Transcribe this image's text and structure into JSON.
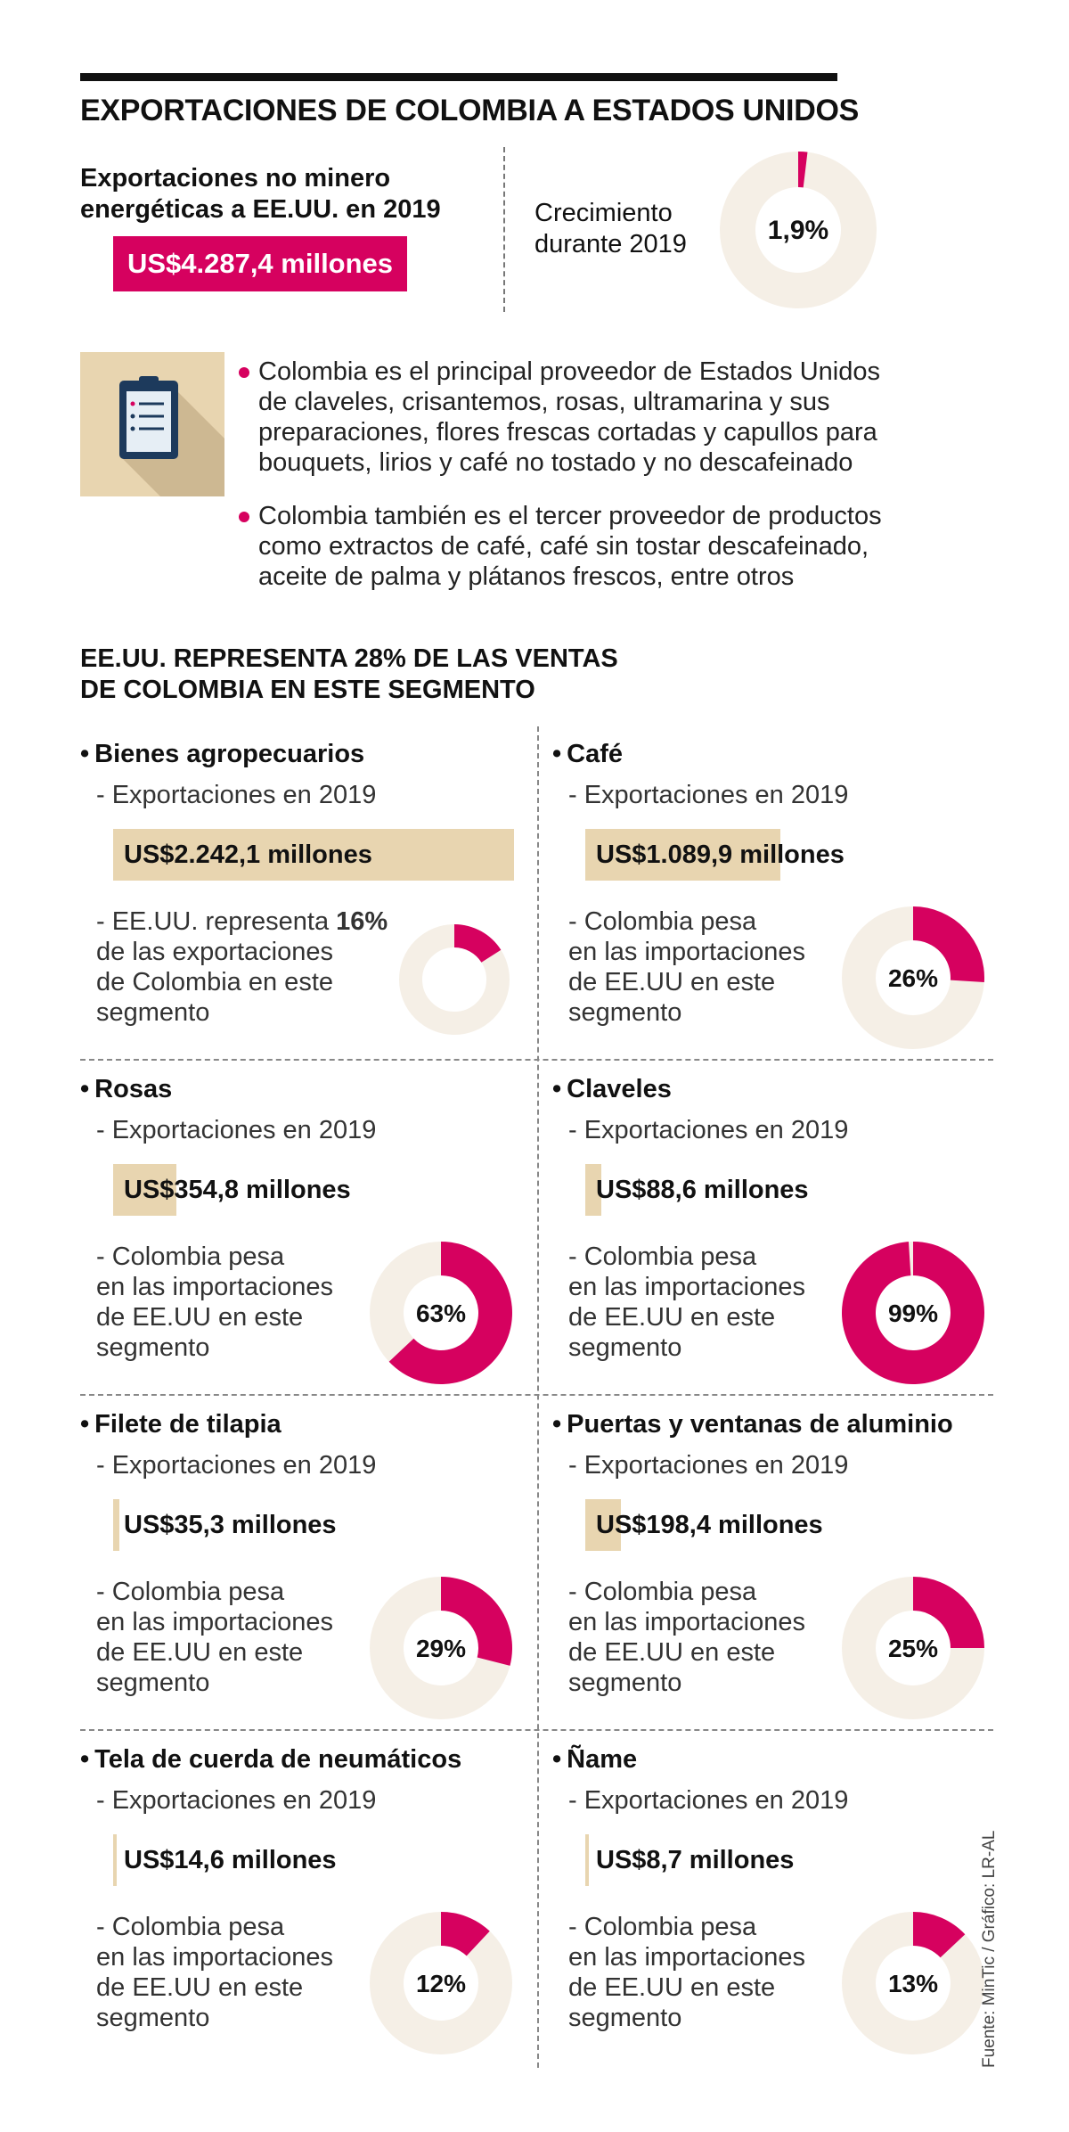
{
  "header": {
    "title": "EXPORTACIONES DE COLOMBIA A ESTADOS UNIDOS",
    "left_lines": [
      "Exportaciones no minero",
      "energéticas a EE.UU. en 2019"
    ],
    "highlight": "US$4.287,4 millones",
    "growth_lines": [
      "Crecimiento",
      "durante 2019"
    ],
    "growth_label": "1,9%",
    "growth_value": 1.9
  },
  "icon": "clipboard-icon",
  "bullets": [
    {
      "lines": [
        "Colombia es el principal proveedor de Estados Unidos",
        "de claveles, crisantemos, rosas, ultramarina y sus",
        "preparaciones, flores frescas cortadas y capullos para",
        "bouquets, lirios y café no tostado y no descafeinado"
      ]
    },
    {
      "lines": [
        "Colombia también es el tercer proveedor de productos",
        "como extractos de café, café sin tostar descafeinado,",
        "aceite de palma y plátanos frescos, entre otros"
      ]
    }
  ],
  "section_title_lines": [
    "EE.UU. REPRESENTA 28% DE LAS VENTAS",
    "DE COLOMBIA EN ESTE SEGMENTO"
  ],
  "colors": {
    "accent": "#d6015f",
    "bar": "#e8d5b0",
    "ring": "#f5efe6"
  },
  "chart_data": {
    "type": "bar",
    "unit": "millones US$",
    "bar_max": 2242.1,
    "categories": [
      "Bienes agropecuarios",
      "Café",
      "Rosas",
      "Claveles",
      "Filete de tilapia",
      "Puertas y ventanas de aluminio",
      "Tela de cuerda de neumáticos",
      "Ñame"
    ],
    "values": [
      2242.1,
      1089.9,
      354.8,
      88.6,
      35.3,
      198.4,
      14.6,
      8.7
    ],
    "share_pct": [
      16,
      26,
      63,
      99,
      29,
      25,
      12,
      13
    ]
  },
  "cells": [
    {
      "title": "Bienes agropecuarios",
      "sub": "- Exportaciones en 2019",
      "value_label": "US$2.242,1 millones",
      "desc_html": [
        "- EE.UU. representa <b>16%</b>",
        "de las exportaciones",
        "de Colombia en este",
        "segmento"
      ],
      "donut_label": "",
      "small_donut": true
    },
    {
      "title": "Café",
      "sub": "- Exportaciones en 2019",
      "value_label": "US$1.089,9 millones",
      "desc": [
        "- Colombia pesa",
        "en las importaciones",
        "de EE.UU en este",
        "segmento"
      ],
      "donut_label": "26%"
    },
    {
      "title": "Rosas",
      "sub": "- Exportaciones en 2019",
      "value_label": "US$354,8 millones",
      "desc": [
        "- Colombia pesa",
        "en las importaciones",
        "de EE.UU en este",
        "segmento"
      ],
      "donut_label": "63%"
    },
    {
      "title": "Claveles",
      "sub": "- Exportaciones en 2019",
      "value_label": "US$88,6 millones",
      "desc": [
        "- Colombia pesa",
        "en las importaciones",
        "de EE.UU en este",
        "segmento"
      ],
      "donut_label": "99%"
    },
    {
      "title": "Filete de tilapia",
      "sub": "- Exportaciones en 2019",
      "value_label": "US$35,3 millones",
      "desc": [
        "- Colombia pesa",
        "en las importaciones",
        "de EE.UU en este",
        "segmento"
      ],
      "donut_label": "29%"
    },
    {
      "title": "Puertas y ventanas de aluminio",
      "sub": "- Exportaciones en 2019",
      "value_label": "US$198,4 millones",
      "desc": [
        "- Colombia pesa",
        "en las importaciones",
        "de EE.UU en este",
        "segmento"
      ],
      "donut_label": "25%"
    },
    {
      "title": "Tela de cuerda de neumáticos",
      "sub": "- Exportaciones en 2019",
      "value_label": "US$14,6 millones",
      "desc": [
        "- Colombia pesa",
        "en las importaciones",
        "de EE.UU en este",
        "segmento"
      ],
      "donut_label": "12%"
    },
    {
      "title": "Ñame",
      "sub": "- Exportaciones en 2019",
      "value_label": "US$8,7 millones",
      "desc": [
        "- Colombia pesa",
        "en las importaciones",
        "de EE.UU en este",
        "segmento"
      ],
      "donut_label": "13%"
    }
  ],
  "credit": "Fuente: MinTic / Gráfico: LR-AL"
}
